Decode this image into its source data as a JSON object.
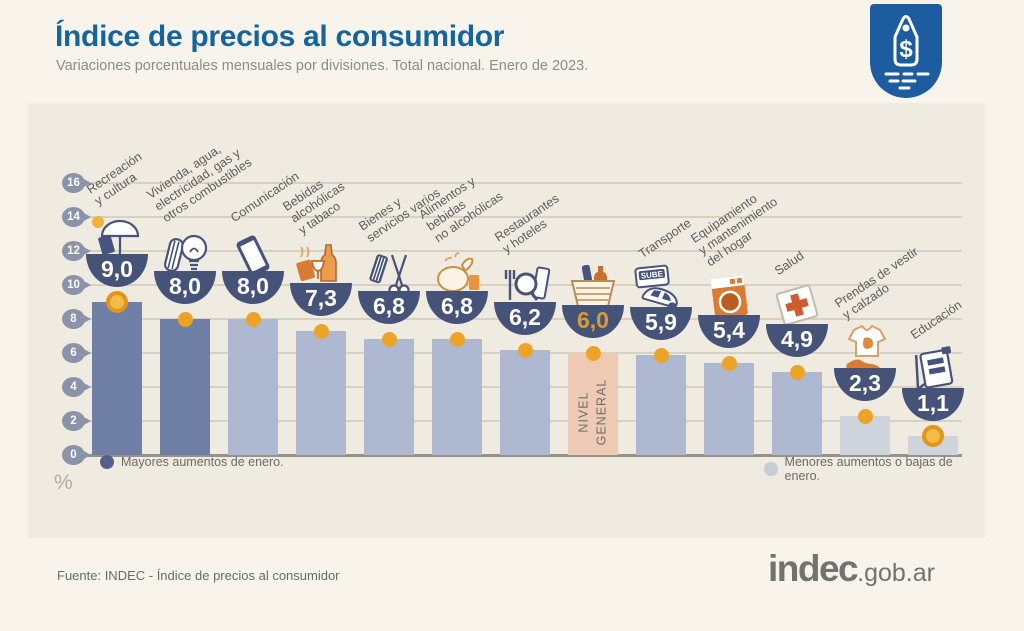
{
  "header": {
    "title": "Índice de precios al consumidor",
    "subtitle": "Variaciones porcentuales mensuales por divisiones. Total nacional. Enero de 2023.",
    "badge_icon": "price-tag-icon"
  },
  "chart_data": {
    "type": "bar",
    "title": "Índice de precios al consumidor",
    "subtitle": "Variaciones porcentuales mensuales por divisiones. Total nacional. Enero de 2023.",
    "xlabel": "",
    "ylabel": "%",
    "ylim": [
      0,
      16
    ],
    "yticks": [
      0,
      2,
      4,
      6,
      8,
      10,
      12,
      14,
      16
    ],
    "grid": true,
    "legend_position": "bottom",
    "categories": [
      "Recreación y cultura",
      "Vivienda, agua, electricidad, gas y otros combustibles",
      "Comunicación",
      "Bebidas alcohólicas y tabaco",
      "Bienes y servicios varios",
      "Alimentos y bebidas no alcohólicas",
      "Restaurantes y hoteles",
      "Nivel general",
      "Transporte",
      "Equipamiento y mantenimiento del hogar",
      "Salud",
      "Prendas de vestir y calzado",
      "Educación"
    ],
    "values": [
      9.0,
      8.0,
      8.0,
      7.3,
      6.8,
      6.8,
      6.2,
      6.0,
      5.9,
      5.4,
      4.9,
      2.3,
      1.1
    ],
    "bars": [
      {
        "label": "Recreación\ny cultura",
        "display": "9,0",
        "value": 9.0,
        "icon": "umbrella-sun-icon",
        "group": "dark",
        "marker": "coin"
      },
      {
        "label": "Vivienda, agua,\nelectricidad, gas y\notros combustibles",
        "display": "8,0",
        "value": 8.0,
        "icon": "lightbulb-icon",
        "group": "dark",
        "marker": "dot"
      },
      {
        "label": "Comunicación",
        "display": "8,0",
        "value": 8.0,
        "icon": "smartphone-icon",
        "group": "light",
        "marker": "dot"
      },
      {
        "label": "Bebidas\nalcohólicas\ny tabaco",
        "display": "7,3",
        "value": 7.3,
        "icon": "drinks-tobacco-icon",
        "group": "light",
        "marker": "dot"
      },
      {
        "label": "Bienes y\nservicios varios",
        "display": "6,8",
        "value": 6.8,
        "icon": "comb-scissors-icon",
        "group": "light",
        "marker": "dot"
      },
      {
        "label": "Alimentos y\nbebidas\nno alcohólicas",
        "display": "6,8",
        "value": 6.8,
        "icon": "roast-chicken-icon",
        "group": "light",
        "marker": "dot"
      },
      {
        "label": "Restaurantes\ny hoteles",
        "display": "6,2",
        "value": 6.2,
        "icon": "cutlery-icon",
        "group": "light",
        "marker": "dot"
      },
      {
        "label": "",
        "inside_label": "NIVEL\nGENERAL",
        "display": "6,0",
        "value": 6.0,
        "icon": "grocery-basket-icon",
        "group": "general",
        "marker": "dot",
        "value_color": "gold"
      },
      {
        "label": "Transporte",
        "display": "5,9",
        "value": 5.9,
        "icon": "car-sube-icon",
        "group": "light",
        "marker": "dot"
      },
      {
        "label": "Equipamiento\ny mantenimiento\ndel hogar",
        "display": "5,4",
        "value": 5.4,
        "icon": "washing-machine-icon",
        "group": "light",
        "marker": "dot"
      },
      {
        "label": "Salud",
        "display": "4,9",
        "value": 4.9,
        "icon": "medical-cross-icon",
        "group": "light",
        "marker": "dot"
      },
      {
        "label": "Prendas de vestir\ny calzado",
        "display": "2,3",
        "value": 2.3,
        "icon": "tshirt-shoe-icon",
        "group": "lighter",
        "marker": "dot"
      },
      {
        "label": "Educación",
        "display": "1,1",
        "value": 1.1,
        "icon": "notebook-pencil-icon",
        "group": "lighter",
        "marker": "coin"
      }
    ],
    "colors": {
      "bar_dark": "#6f7fa5",
      "bar_light": "#aeb9d1",
      "bar_lighter": "#cdd4dc",
      "bar_general": "#eecab4",
      "bowl": "#465379",
      "value_text": "#ffffff",
      "value_gold": "#d99b35",
      "marker": "#eca326",
      "coin_fill": "#f2bc45",
      "coin_ring": "#e0951c",
      "grid": "#d7d1c4",
      "baseline": "#95938b",
      "tick_badge": "#8b93ab",
      "accent_blue": "#14649f",
      "sube_label": "SUBE"
    }
  },
  "legend": {
    "mayores": {
      "label": "Mayores aumentos de enero.",
      "color": "#566086"
    },
    "menores": {
      "label": "Menores aumentos o bajas de enero.",
      "color": "#c7ccd7"
    }
  },
  "footer": {
    "source": "Fuente: INDEC - Índice de precios al consumidor",
    "logo_main": "indec",
    "logo_suffix": ".gob.ar"
  }
}
